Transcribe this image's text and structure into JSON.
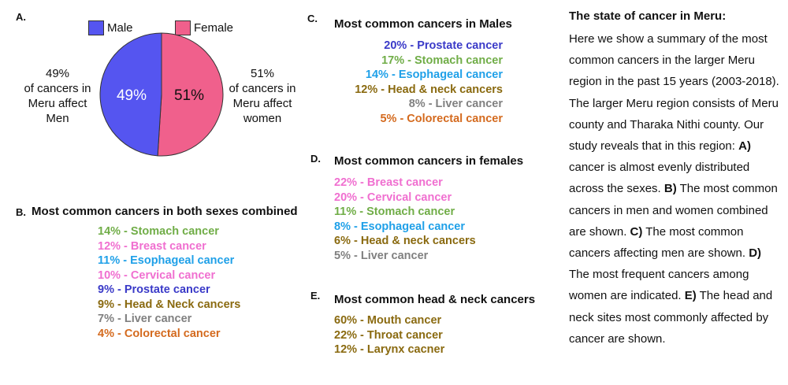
{
  "panel_a": {
    "letter": "A.",
    "legend": [
      {
        "label": "Male",
        "color": "#5555f0"
      },
      {
        "label": "Female",
        "color": "#f0608c"
      }
    ],
    "left_note": [
      "49%",
      "of cancers in",
      "Meru affect",
      "Men"
    ],
    "right_note": [
      "51%",
      "of cancers in",
      "Meru affect",
      "women"
    ]
  },
  "chart_data": [
    {
      "type": "pie",
      "title": "",
      "slices": [
        {
          "label": "Male",
          "value": 49,
          "display": "49%",
          "color": "#5555f0"
        },
        {
          "label": "Female",
          "value": 51,
          "display": "51%",
          "color": "#f0608c"
        }
      ]
    },
    {
      "type": "table",
      "title": "Most common cancers in both sexes combined",
      "letter": "B.",
      "rows": [
        {
          "text": "14% - Stomach cancer",
          "value": 14,
          "color": "#70ad47"
        },
        {
          "text": "12% - Breast cancer",
          "value": 12,
          "color": "#f06fd0"
        },
        {
          "text": "11% - Esophageal cancer",
          "value": 11,
          "color": "#1fa0e8"
        },
        {
          "text": "10% - Cervical cancer",
          "value": 10,
          "color": "#f06fd0"
        },
        {
          "text": "9% - Prostate cancer",
          "value": 9,
          "color": "#3a3ac8"
        },
        {
          "text": "9% - Head & Neck cancers",
          "value": 9,
          "color": "#8a6a10"
        },
        {
          "text": "7% - Liver cancer",
          "value": 7,
          "color": "#808080"
        },
        {
          "text": "4% - Colorectal cancer",
          "value": 4,
          "color": "#d46a1e"
        }
      ]
    },
    {
      "type": "table",
      "title": "Most common cancers in Males",
      "letter": "C.",
      "rows": [
        {
          "text": "20% - Prostate cancer",
          "value": 20,
          "color": "#3a3ac8"
        },
        {
          "text": "17% - Stomach cancer",
          "value": 17,
          "color": "#70ad47"
        },
        {
          "text": "14% - Esophageal cancer",
          "value": 14,
          "color": "#1fa0e8"
        },
        {
          "text": "12% - Head & neck cancers",
          "value": 12,
          "color": "#8a6a10"
        },
        {
          "text": "8% - Liver cancer",
          "value": 8,
          "color": "#808080"
        },
        {
          "text": "5% - Colorectal cancer",
          "value": 5,
          "color": "#d46a1e"
        }
      ]
    },
    {
      "type": "table",
      "title": "Most common cancers in females",
      "letter": "D.",
      "rows": [
        {
          "text": "22% - Breast cancer",
          "value": 22,
          "color": "#f06fd0"
        },
        {
          "text": "20% - Cervical cancer",
          "value": 20,
          "color": "#f06fd0"
        },
        {
          "text": "11% - Stomach cancer",
          "value": 11,
          "color": "#70ad47"
        },
        {
          "text": "8% - Esophageal cancer",
          "value": 8,
          "color": "#1fa0e8"
        },
        {
          "text": "6% - Head & neck cancers",
          "value": 6,
          "color": "#8a6a10"
        },
        {
          "text": "5% - Liver cancer",
          "value": 5,
          "color": "#808080"
        }
      ]
    },
    {
      "type": "table",
      "title": "Most common head & neck cancers",
      "letter": "E.",
      "rows": [
        {
          "text": "60% - Mouth cancer",
          "value": 60,
          "color": "#8a6a10"
        },
        {
          "text": "22% - Throat cancer",
          "value": 22,
          "color": "#8a6a10"
        },
        {
          "text": "12% - Larynx cacner",
          "value": 12,
          "color": "#8a6a10"
        }
      ]
    }
  ],
  "summary": {
    "title": "The state of cancer in Meru:",
    "segments": [
      {
        "t": "Here we show a summary of the most common cancers in the larger Meru region in the past 15 years (2003-2018). The larger Meru region consists of Meru county and Tharaka Nithi county. Our study reveals that in this region: ",
        "b": false
      },
      {
        "t": "A)",
        "b": true
      },
      {
        "t": " cancer is almost evenly distributed across the sexes. ",
        "b": false
      },
      {
        "t": "B)",
        "b": true
      },
      {
        "t": " The most common cancers in men and women combined are shown. ",
        "b": false
      },
      {
        "t": "C)",
        "b": true
      },
      {
        "t": " The most common cancers affecting men are shown. ",
        "b": false
      },
      {
        "t": "D)",
        "b": true
      },
      {
        "t": " The most frequent cancers among women are indicated. ",
        "b": false
      },
      {
        "t": "E)",
        "b": true
      },
      {
        "t": " The head and neck sites most commonly affected by cancer are shown.",
        "b": false
      }
    ]
  }
}
